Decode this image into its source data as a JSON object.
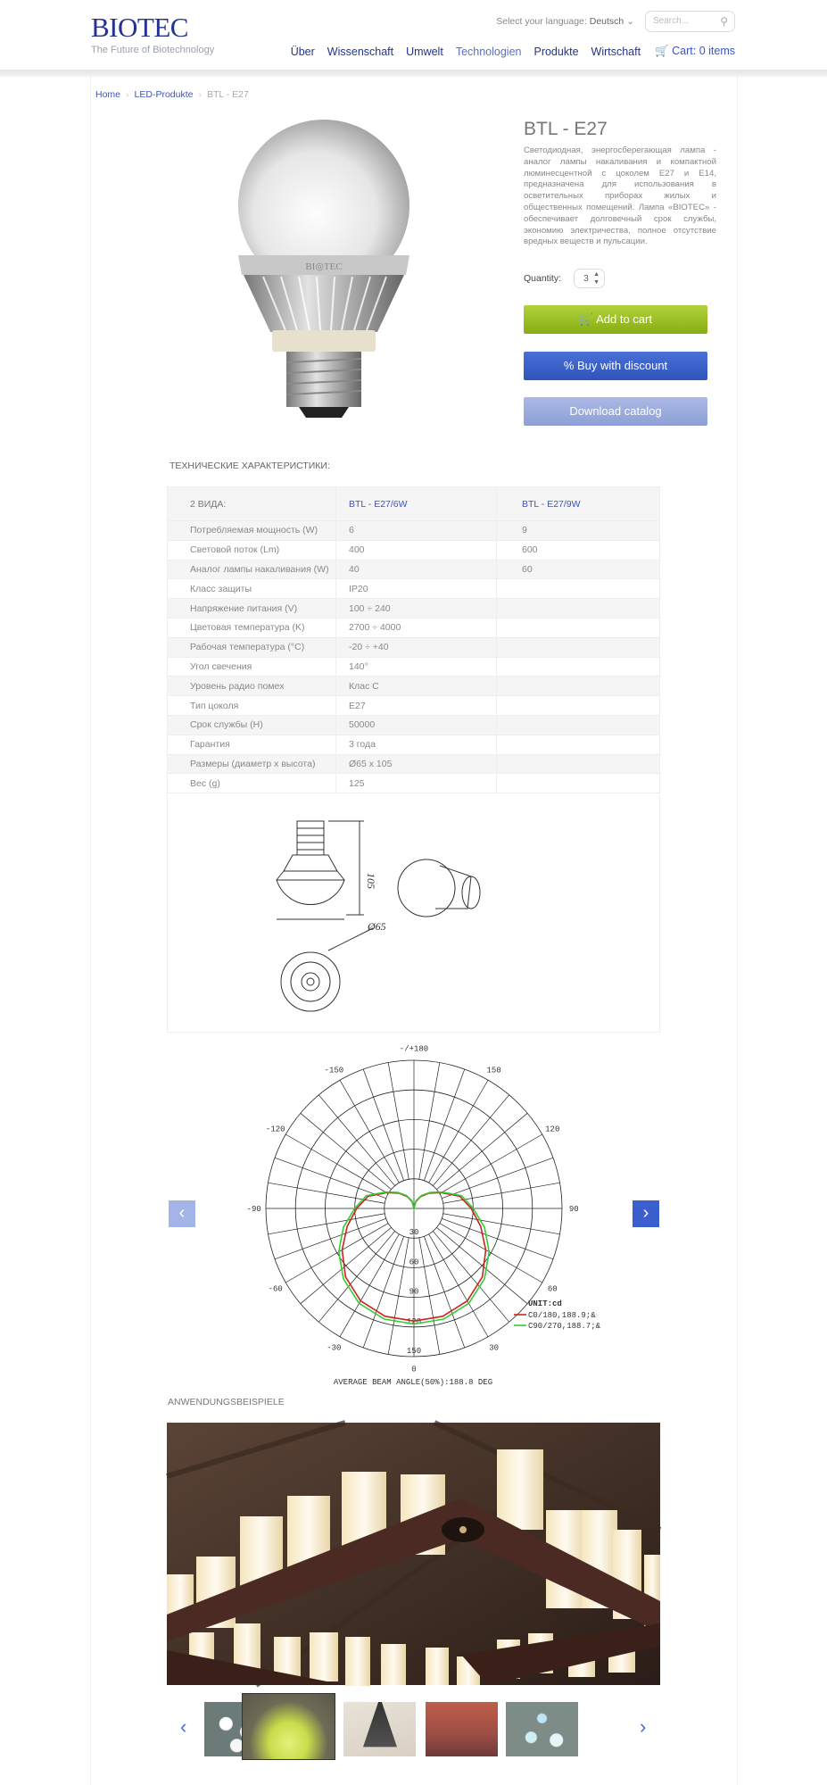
{
  "header": {
    "logo_text": "BIOTEC",
    "tagline": "The Future of Biotechnology",
    "language_label": "Select your language:",
    "language_value": "Deutsch",
    "search_placeholder": "Search...",
    "nav": [
      "Über",
      "Wissenschaft",
      "Umwelt",
      "Technologien",
      "Produkte",
      "Wirtschaft"
    ],
    "nav_hover": "Technologien",
    "cart_label": "Cart: 0 items"
  },
  "breadcrumb": [
    "Home",
    "LED-Produkte",
    "BTL - E27"
  ],
  "product": {
    "title": "BTL - E27",
    "description": "Светодиодная, энергосберегающая лампа - аналог лампы накаливания и компактной люминесцентной с цоколем E27 и E14, предназначена для использования в осветительных приборах жилых и общественных помещений. Лампа «BIOTEC» - обеспечивает долговечный срок службы, экономию электричества, полное отсутствие вредных веществ и пульсации.",
    "quantity_label": "Quantity:",
    "quantity_value": "3",
    "add_to_cart": "Add to cart",
    "buy_discount": "% Buy with discount",
    "download_catalog": "Download catalog",
    "colors": {
      "add_to_cart": "#9cc026",
      "buy_discount": "#3d62cb",
      "download_catalog": "#9caee0"
    }
  },
  "specs": {
    "heading": "ТЕХНИЧЕСКИЕ ХАРАКТЕРИСТИКИ:",
    "columns": [
      "2 ВИДА:",
      "BTL - E27/6W",
      "BTL - E27/9W"
    ],
    "rows": [
      [
        "Потребляемая мощность (W)",
        "6",
        "9"
      ],
      [
        "Световой поток (Lm)",
        "400",
        "600"
      ],
      [
        "Аналог лампы накаливания (W)",
        "40",
        "60"
      ],
      [
        "Класс защиты",
        "IP20",
        ""
      ],
      [
        "Напряжение питания (V)",
        "100 ÷ 240",
        ""
      ],
      [
        "Цветовая температура (K)",
        "2700 ÷ 4000",
        ""
      ],
      [
        "Рабочая температура (°C)",
        "-20 ÷ +40",
        ""
      ],
      [
        "Угол свечения",
        "140°",
        ""
      ],
      [
        "Уровень радио помех",
        "Клас C",
        ""
      ],
      [
        "Тип цоколя",
        "E27",
        ""
      ],
      [
        "Срок службы (H)",
        "50000",
        ""
      ],
      [
        "Гарантия",
        "3 года",
        ""
      ],
      [
        "Размеры (диаметр x высота)",
        "Ø65 x 105",
        ""
      ],
      [
        "Вес (g)",
        "125",
        ""
      ]
    ],
    "drawing_labels": {
      "height": "105",
      "diameter": "Ø65"
    }
  },
  "chart_data": {
    "type": "polar-line",
    "angle_labels": [
      "0",
      "30",
      "60",
      "90",
      "120",
      "150",
      "-/+180",
      "-150",
      "-120",
      "-90",
      "-60",
      "-30"
    ],
    "radial_ticks": [
      30,
      60,
      90,
      120,
      150
    ],
    "rmax": 150,
    "unit_label": "UNIT:cd",
    "caption": "AVERAGE BEAM ANGLE(50%):188.8 DEG",
    "angles": [
      0,
      15,
      30,
      45,
      60,
      75,
      90,
      105,
      120,
      135,
      150,
      165,
      180
    ],
    "series": [
      {
        "name": "C0/180,188.9;&",
        "color": "#cc2222",
        "values": [
          114,
          113,
          108,
          98,
          84,
          70,
          58,
          48,
          32,
          22,
          14,
          7,
          0
        ]
      },
      {
        "name": "C90/270,188.7;&",
        "color": "#33cc33",
        "values": [
          117,
          116,
          111,
          101,
          88,
          74,
          60,
          50,
          33,
          23,
          15,
          8,
          0
        ]
      }
    ],
    "grid": true,
    "legend": "bottom-right"
  },
  "gallery": {
    "heading": "ANWENDUNGSBEISPIELE",
    "prev_label": "‹",
    "next_label": "›",
    "thumbnail_count": 5,
    "selected_thumbnail": 2
  }
}
